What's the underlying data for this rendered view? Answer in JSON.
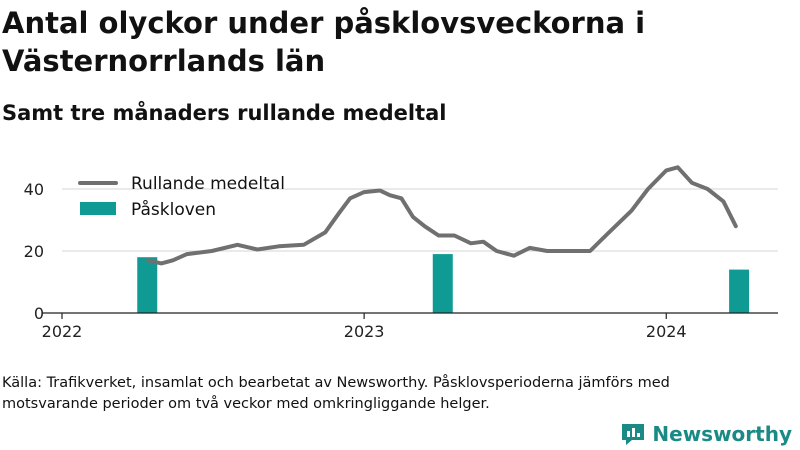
{
  "title": "Antal olyckor under påsklovsveckorna i Västernorrlands län",
  "subtitle": "Samt tre månaders rullande medeltal",
  "source": "Källa: Trafikverket, insamlat och bearbetat av Newsworthy. Påsklovsperioderna jämförs med motsvarande perioder om två veckor med omkringliggande helger.",
  "logo_text": "Newsworthy",
  "colors": {
    "line": "#707070",
    "bars": "#0f9a94",
    "logo": "#1a8a84"
  },
  "chart_data": {
    "type": "bar+line",
    "xlim": [
      "2022-01-01",
      "2024-05-15"
    ],
    "ylim": [
      0,
      50
    ],
    "yticks": [
      0,
      20,
      40
    ],
    "xticks": [
      {
        "date": "2022-01-01",
        "label": "2022"
      },
      {
        "date": "2023-01-01",
        "label": "2023"
      },
      {
        "date": "2024-01-01",
        "label": "2024"
      }
    ],
    "legend": {
      "placement": "top-left"
    },
    "series": [
      {
        "name": "Rullande medeltal",
        "kind": "line",
        "points": [
          {
            "x": "2022-04-15",
            "y": 17
          },
          {
            "x": "2022-05-01",
            "y": 16
          },
          {
            "x": "2022-05-15",
            "y": 17
          },
          {
            "x": "2022-06-01",
            "y": 19
          },
          {
            "x": "2022-07-01",
            "y": 20
          },
          {
            "x": "2022-08-01",
            "y": 22
          },
          {
            "x": "2022-08-25",
            "y": 20.5
          },
          {
            "x": "2022-09-20",
            "y": 21.5
          },
          {
            "x": "2022-10-20",
            "y": 22
          },
          {
            "x": "2022-11-15",
            "y": 26
          },
          {
            "x": "2022-12-01",
            "y": 32
          },
          {
            "x": "2022-12-15",
            "y": 37
          },
          {
            "x": "2023-01-01",
            "y": 39
          },
          {
            "x": "2023-01-20",
            "y": 39.5
          },
          {
            "x": "2023-02-01",
            "y": 38
          },
          {
            "x": "2023-02-15",
            "y": 37
          },
          {
            "x": "2023-03-01",
            "y": 31
          },
          {
            "x": "2023-03-15",
            "y": 28
          },
          {
            "x": "2023-04-01",
            "y": 25
          },
          {
            "x": "2023-04-20",
            "y": 25
          },
          {
            "x": "2023-05-10",
            "y": 22.5
          },
          {
            "x": "2023-05-25",
            "y": 23
          },
          {
            "x": "2023-06-10",
            "y": 20
          },
          {
            "x": "2023-07-01",
            "y": 18.5
          },
          {
            "x": "2023-07-20",
            "y": 21
          },
          {
            "x": "2023-08-10",
            "y": 20
          },
          {
            "x": "2023-09-01",
            "y": 20
          },
          {
            "x": "2023-10-01",
            "y": 20
          },
          {
            "x": "2023-10-20",
            "y": 25
          },
          {
            "x": "2023-11-20",
            "y": 33
          },
          {
            "x": "2023-12-10",
            "y": 40
          },
          {
            "x": "2024-01-01",
            "y": 46
          },
          {
            "x": "2024-01-15",
            "y": 47
          },
          {
            "x": "2024-02-01",
            "y": 42
          },
          {
            "x": "2024-02-20",
            "y": 40
          },
          {
            "x": "2024-03-10",
            "y": 36
          },
          {
            "x": "2024-03-25",
            "y": 28
          }
        ]
      },
      {
        "name": "Påskloven",
        "kind": "bar",
        "points": [
          {
            "x": "2022-04-14",
            "y": 18
          },
          {
            "x": "2023-04-06",
            "y": 19
          },
          {
            "x": "2024-03-29",
            "y": 14
          }
        ]
      }
    ]
  }
}
